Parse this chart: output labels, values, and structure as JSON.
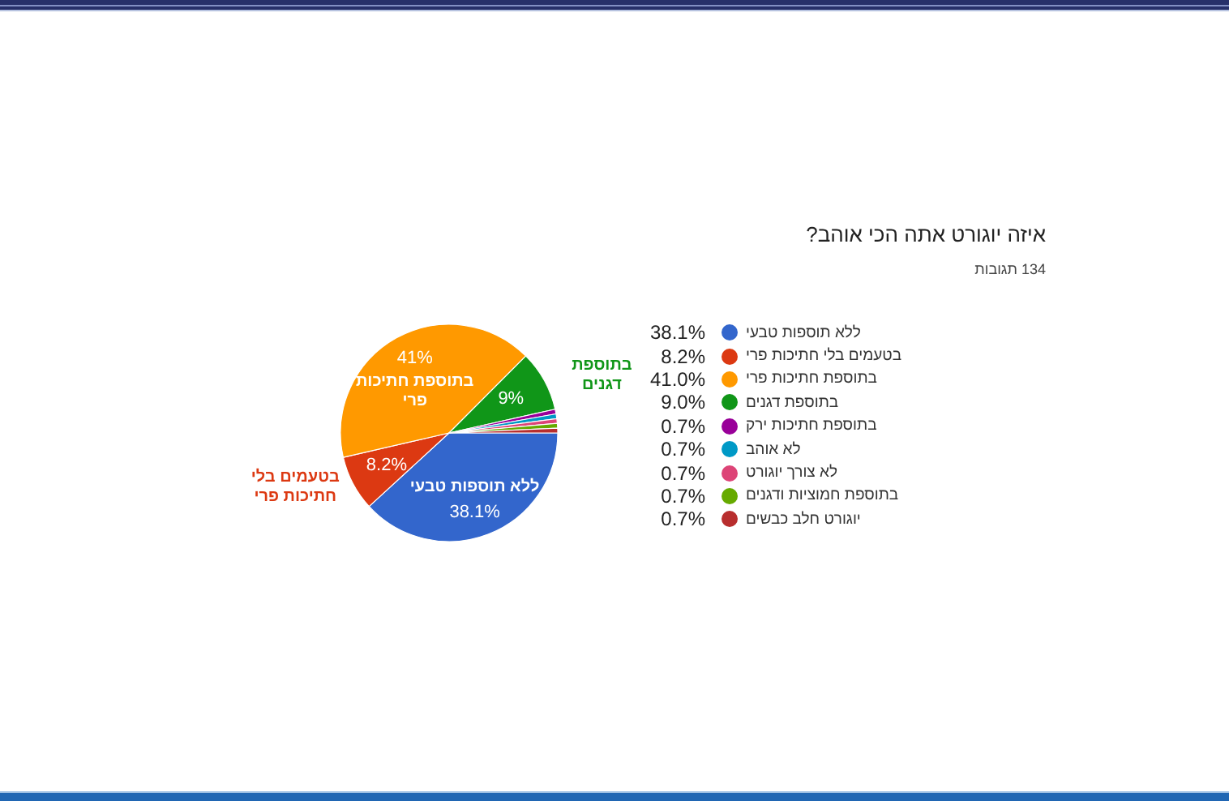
{
  "chart_data": {
    "type": "pie",
    "title": "איזה יוגורט אתה הכי אוהב?",
    "subtitle": "134 תגובות",
    "categories": [
      "ללא תוספות טבעי",
      "בטעמים בלי חתיכות פרי",
      "בתוספת חתיכות פרי",
      "בתוספת דגנים",
      "בתוספת חתיכות ירק",
      "לא אוהב",
      "לא צורך יוגורט",
      "בתוספת חמוציות ודגנים",
      "יוגורט חלב כבשים"
    ],
    "values": [
      38.1,
      8.2,
      41.0,
      9.0,
      0.7,
      0.7,
      0.7,
      0.7,
      0.7
    ],
    "colors": [
      "#3366cc",
      "#dc3912",
      "#ff9900",
      "#109618",
      "#990099",
      "#0099c6",
      "#dd4477",
      "#66aa00",
      "#b82e2e"
    ],
    "value_labels": [
      "38.1%",
      "8.2%",
      "41.0%",
      "9.0%",
      "0.7%",
      "0.7%",
      "0.7%",
      "0.7%",
      "0.7%"
    ],
    "annotations": [
      {
        "text": "38.1%",
        "x": "ללא תוספות טבעי"
      },
      {
        "text": "8.2%",
        "x": "בטעמים בלי חתיכות פרי"
      },
      {
        "text": "41%",
        "x": "בתוספת חתיכות פרי"
      },
      {
        "text": "9%",
        "x": "בתוספת דגנים"
      }
    ],
    "legend": "right"
  }
}
